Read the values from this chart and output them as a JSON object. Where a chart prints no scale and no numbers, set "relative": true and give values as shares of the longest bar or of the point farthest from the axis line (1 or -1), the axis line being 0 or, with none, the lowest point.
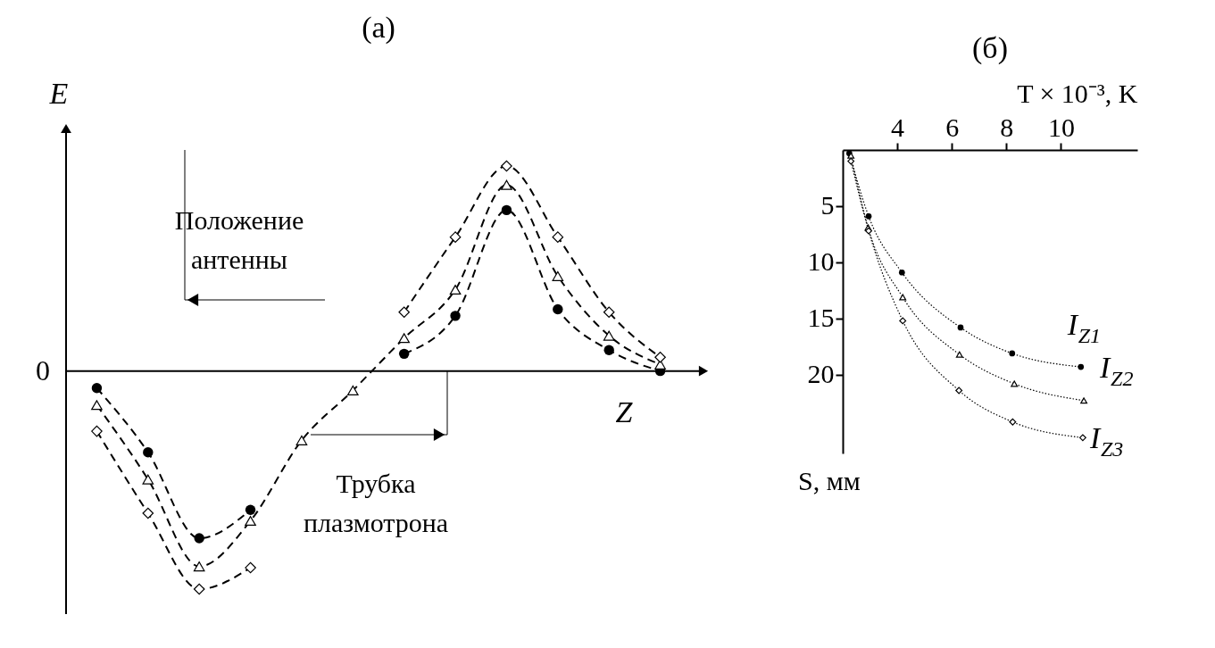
{
  "chart_data": [
    {
      "type": "line",
      "title": "(а)",
      "ylabel": "E",
      "xlabel": "Z",
      "relative": true,
      "line_style": "dashed",
      "categories": [
        null,
        null,
        null,
        null,
        null,
        null,
        null,
        null,
        null,
        null,
        null,
        null
      ],
      "annotations": [
        "Положение антенны",
        "Трубка плазмотрона",
        "0"
      ],
      "series": [
        {
          "color": "#000000",
          "marker": "circle",
          "values": [
            -0.078,
            -0.373,
            -0.767,
            -0.637,
            null,
            null,
            0.079,
            0.253,
            0.738,
            0.283,
            0.096,
            0
          ]
        },
        {
          "color": "#000000",
          "marker": "triangle",
          "values": [
            -0.156,
            -0.497,
            -0.896,
            -0.687,
            -0.318,
            -0.089,
            0.151,
            0.373,
            0.853,
            0.435,
            0.162,
            0.03
          ]
        },
        {
          "color": "#000000",
          "marker": "diamond",
          "values": [
            -0.276,
            -0.652,
            -1,
            -0.902,
            null,
            null,
            0.27,
            0.614,
            0.94,
            0.614,
            0.27,
            0.063
          ]
        }
      ]
    },
    {
      "type": "line",
      "title": "(б)",
      "xlabel": "T × 10⁻³, K",
      "ylabel": "S, мм",
      "line_style": "dotted",
      "xlim": [
        2,
        12.8
      ],
      "xticks": [
        4,
        6,
        8,
        10
      ],
      "ylim": [
        27,
        0
      ],
      "yticks": [
        5,
        10,
        15,
        20
      ],
      "series": [
        {
          "name": "I$_{Z1}$",
          "color": "#000000",
          "marker": "circle",
          "x": [
            2.24,
            2.95,
            4.17,
            6.32,
            8.21,
            10.73
          ],
          "values": [
            0.3,
            5.9,
            10.9,
            15.8,
            18.1,
            19.3
          ]
        },
        {
          "name": "I$_{Z2}$",
          "color": "#000000",
          "marker": "triangle",
          "x": [
            2.3,
            2.93,
            4.2,
            6.28,
            8.29,
            10.84
          ],
          "values": [
            0.5,
            6.9,
            13.1,
            18.2,
            20.8,
            22.3
          ]
        },
        {
          "name": "I$_{Z3}$",
          "color": "#000000",
          "marker": "diamond",
          "x": [
            2.3,
            2.95,
            4.2,
            6.26,
            8.23,
            10.8
          ],
          "values": [
            1.0,
            7.2,
            15.2,
            21.4,
            24.2,
            25.6
          ]
        }
      ]
    }
  ]
}
